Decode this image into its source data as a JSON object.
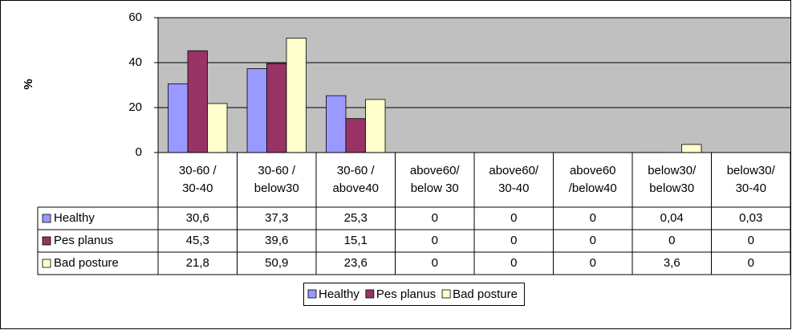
{
  "chart_data": {
    "type": "bar",
    "y_label": "%",
    "categories": [
      [
        "30-60 /",
        "30-40"
      ],
      [
        "30-60 /",
        "below30"
      ],
      [
        "30-60 /",
        "above40"
      ],
      [
        "above60/",
        "below 30"
      ],
      [
        "above60/",
        "30-40"
      ],
      [
        "above60",
        "/below40"
      ],
      [
        "below30/",
        "below30"
      ],
      [
        "below30/",
        "30-40"
      ]
    ],
    "series": [
      {
        "name": "Healthy",
        "color": "#9999ff",
        "values": [
          30.6,
          37.3,
          25.3,
          0,
          0,
          0,
          0.04,
          0.03
        ],
        "value_labels": [
          "30,6",
          "37,3",
          "25,3",
          "0",
          "0",
          "0",
          "0,04",
          "0,03"
        ]
      },
      {
        "name": "Pes planus",
        "color": "#993366",
        "values": [
          45.3,
          39.6,
          15.1,
          0,
          0,
          0,
          0,
          0
        ],
        "value_labels": [
          "45,3",
          "39,6",
          "15,1",
          "0",
          "0",
          "0",
          "0",
          "0"
        ]
      },
      {
        "name": "Bad posture",
        "color": "#ffffcc",
        "values": [
          21.8,
          50.9,
          23.6,
          0,
          0,
          0,
          3.6,
          0
        ],
        "value_labels": [
          "21,8",
          "50,9",
          "23,6",
          "0",
          "0",
          "0",
          "3,6",
          "0"
        ]
      }
    ],
    "ylim": [
      0,
      60
    ],
    "yticks": [
      0,
      20,
      40,
      60
    ],
    "grid": true,
    "plot_background": "#c0c0c0",
    "legend": "bottom"
  }
}
